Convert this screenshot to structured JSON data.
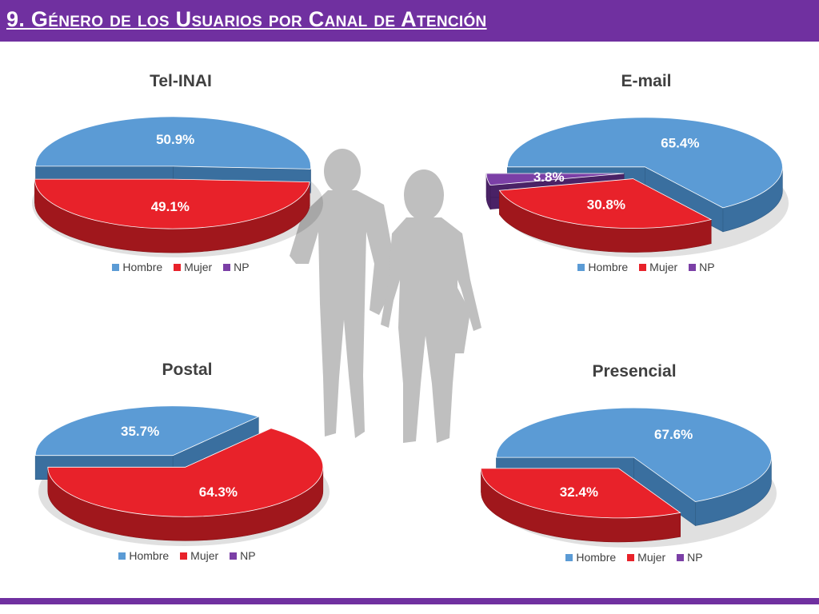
{
  "header": {
    "title": "9. Género de los Usuarios por Canal de Atención"
  },
  "colors": {
    "header_bar": "#7030a0",
    "hombre": "#5b9bd5",
    "mujer": "#e8222a",
    "np": "#7b3fa6"
  },
  "chart_data": [
    {
      "type": "pie",
      "title": "Tel-INAI",
      "categories": [
        "Hombre",
        "Mujer",
        "NP"
      ],
      "values": [
        50.9,
        49.1,
        0
      ],
      "data_labels": [
        "50.9%",
        "49.1%",
        ""
      ],
      "legend": {
        "placement": "bottom",
        "entries": [
          "Hombre",
          "Mujer",
          "NP"
        ]
      }
    },
    {
      "type": "pie",
      "title": "E-mail",
      "categories": [
        "Hombre",
        "Mujer",
        "NP"
      ],
      "values": [
        65.4,
        30.8,
        3.8
      ],
      "data_labels": [
        "65.4%",
        "30.8%",
        "3.8%"
      ],
      "legend": {
        "placement": "bottom",
        "entries": [
          "Hombre",
          "Mujer",
          "NP"
        ]
      }
    },
    {
      "type": "pie",
      "title": "Postal",
      "categories": [
        "Hombre",
        "Mujer",
        "NP"
      ],
      "values": [
        35.7,
        64.3,
        0
      ],
      "data_labels": [
        "35.7%",
        "64.3%",
        ""
      ],
      "legend": {
        "placement": "bottom",
        "entries": [
          "Hombre",
          "Mujer",
          "NP"
        ]
      }
    },
    {
      "type": "pie",
      "title": "Presencial",
      "categories": [
        "Hombre",
        "Mujer",
        "NP"
      ],
      "values": [
        67.6,
        32.4,
        0
      ],
      "data_labels": [
        "67.6%",
        "32.4%",
        ""
      ],
      "legend": {
        "placement": "bottom",
        "entries": [
          "Hombre",
          "Mujer",
          "NP"
        ]
      }
    }
  ]
}
